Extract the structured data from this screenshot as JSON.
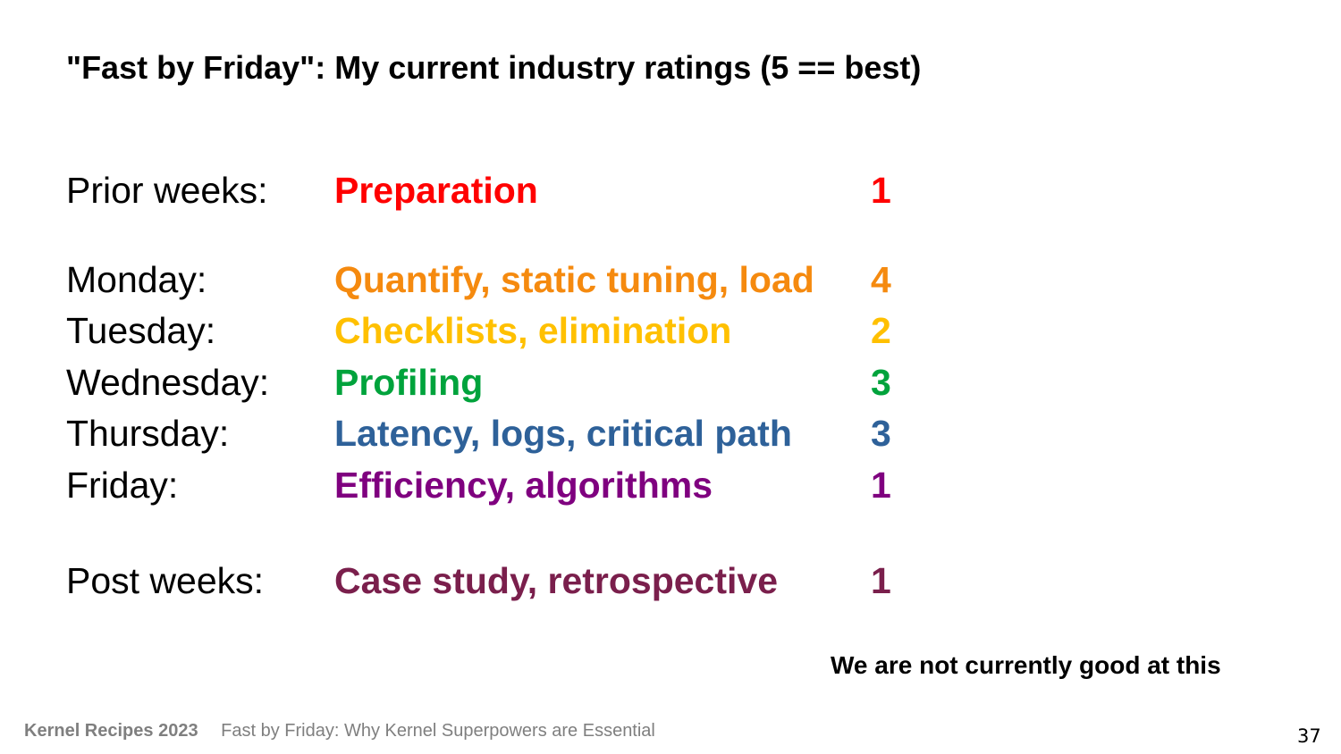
{
  "slide": {
    "title": "\"Fast by Friday\": My current industry ratings (5 == best)",
    "rows": [
      {
        "day": "Prior weeks:",
        "topic": "Preparation",
        "rating": "1",
        "color": "#ff0000"
      },
      {
        "day": "Monday:",
        "topic": "Quantify, static tuning, load",
        "rating": "4",
        "color": "#f58a0f"
      },
      {
        "day": "Tuesday:",
        "topic": "Checklists, elimination",
        "rating": "2",
        "color": "#ffc000"
      },
      {
        "day": "Wednesday:",
        "topic": "Profiling",
        "rating": "3",
        "color": "#00a33c"
      },
      {
        "day": "Thursday:",
        "topic": "Latency, logs, critical path",
        "rating": "3",
        "color": "#2e6199"
      },
      {
        "day": "Friday:",
        "topic": "Efficiency, algorithms",
        "rating": "1",
        "color": "#7f007f"
      },
      {
        "day": "Post weeks:",
        "topic": "Case study, retrospective",
        "rating": "1",
        "color": "#7a1f4c"
      }
    ],
    "note": "We are not currently good at this"
  },
  "footer": {
    "event": "Kernel Recipes 2023",
    "talk": "Fast by Friday: Why Kernel Superpowers are Essential",
    "page_number": "37"
  }
}
